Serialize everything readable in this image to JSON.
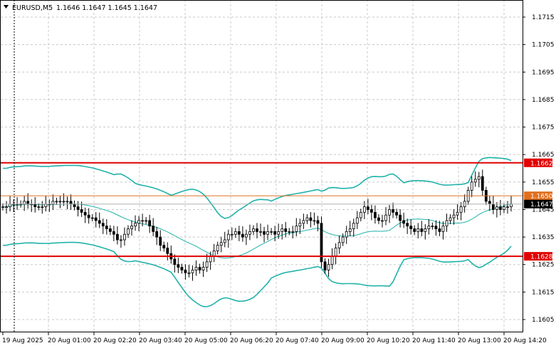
{
  "header": {
    "symbol": "EURUSD,M5",
    "ohlc": "1.1646 1.1647 1.1645 1.1647"
  },
  "colors": {
    "background": "#ffffff",
    "grid": "#c8c8c8",
    "candle": "#000000",
    "bollinger": "#20b2aa",
    "hline_red": "#e00000",
    "hline_orange": "#e07020",
    "price_label_bg": "#000000"
  },
  "chart_data": {
    "type": "candlestick",
    "symbol": "EURUSD",
    "timeframe": "M5",
    "y_ticks": [
      "1.1715",
      "1.1705",
      "1.1695",
      "1.1685",
      "1.1675",
      "1.1665",
      "1.1655",
      "1.1645",
      "1.1635",
      "1.1625",
      "1.1615",
      "1.1605"
    ],
    "x_ticks": [
      "19 Aug 2025",
      "20 Aug 01:00",
      "20 Aug 02:20",
      "20 Aug 03:40",
      "20 Aug 05:00",
      "20 Aug 06:20",
      "20 Aug 07:40",
      "20 Aug 09:00",
      "20 Aug 10:20",
      "20 Aug 11:40",
      "20 Aug 13:00",
      "20 Aug 14:20"
    ],
    "ylim": [
      1.16,
      1.1721
    ],
    "grid": true,
    "horizontal_lines": [
      {
        "price": 1.1662,
        "label": "1.1662",
        "color": "red"
      },
      {
        "price": 1.165,
        "label": "1.1650",
        "color": "orange"
      },
      {
        "price": 1.1628,
        "label": "1.1628",
        "color": "red"
      }
    ],
    "current_price": {
      "price": 1.1647,
      "label": "1.1647"
    },
    "close_series": [
      1.1646,
      1.1646,
      1.1647,
      1.1647,
      1.1647,
      1.1647,
      1.1648,
      1.1647,
      1.1647,
      1.1646,
      1.1646,
      1.1646,
      1.1647,
      1.1647,
      1.1648,
      1.1648,
      1.1648,
      1.1648,
      1.1648,
      1.1647,
      1.1646,
      1.1645,
      1.1644,
      1.1643,
      1.1642,
      1.1642,
      1.1641,
      1.164,
      1.1639,
      1.1638,
      1.1637,
      1.1636,
      1.1634,
      1.1634,
      1.1636,
      1.1638,
      1.1639,
      1.164,
      1.1641,
      1.1641,
      1.1641,
      1.1639,
      1.1637,
      1.1635,
      1.1632,
      1.1631,
      1.1629,
      1.1627,
      1.1625,
      1.1624,
      1.1623,
      1.1622,
      1.1622,
      1.1623,
      1.1624,
      1.1623,
      1.1624,
      1.1626,
      1.1628,
      1.163,
      1.1632,
      1.1633,
      1.1634,
      1.1636,
      1.1636,
      1.1637,
      1.1636,
      1.1635,
      1.1636,
      1.1637,
      1.1638,
      1.1637,
      1.1637,
      1.1636,
      1.1637,
      1.1637,
      1.1636,
      1.1637,
      1.1638,
      1.1637,
      1.1637,
      1.1637,
      1.1639,
      1.164,
      1.1641,
      1.1642,
      1.1641,
      1.1641,
      1.164,
      1.1626,
      1.1623,
      1.1625,
      1.1628,
      1.1631,
      1.1633,
      1.1635,
      1.1637,
      1.1638,
      1.164,
      1.1642,
      1.1644,
      1.1646,
      1.1645,
      1.1644,
      1.1642,
      1.1641,
      1.1641,
      1.1643,
      1.1645,
      1.1644,
      1.1643,
      1.1641,
      1.164,
      1.1639,
      1.1638,
      1.1637,
      1.1638,
      1.1637,
      1.1638,
      1.1639,
      1.1639,
      1.1638,
      1.1637,
      1.1639,
      1.1641,
      1.1642,
      1.1643,
      1.1644,
      1.1646,
      1.1648,
      1.1652,
      1.1655,
      1.1656,
      1.1657,
      1.1652,
      1.1648,
      1.1647,
      1.1645,
      1.1646,
      1.1645,
      1.1646,
      1.1646,
      1.1647
    ]
  }
}
